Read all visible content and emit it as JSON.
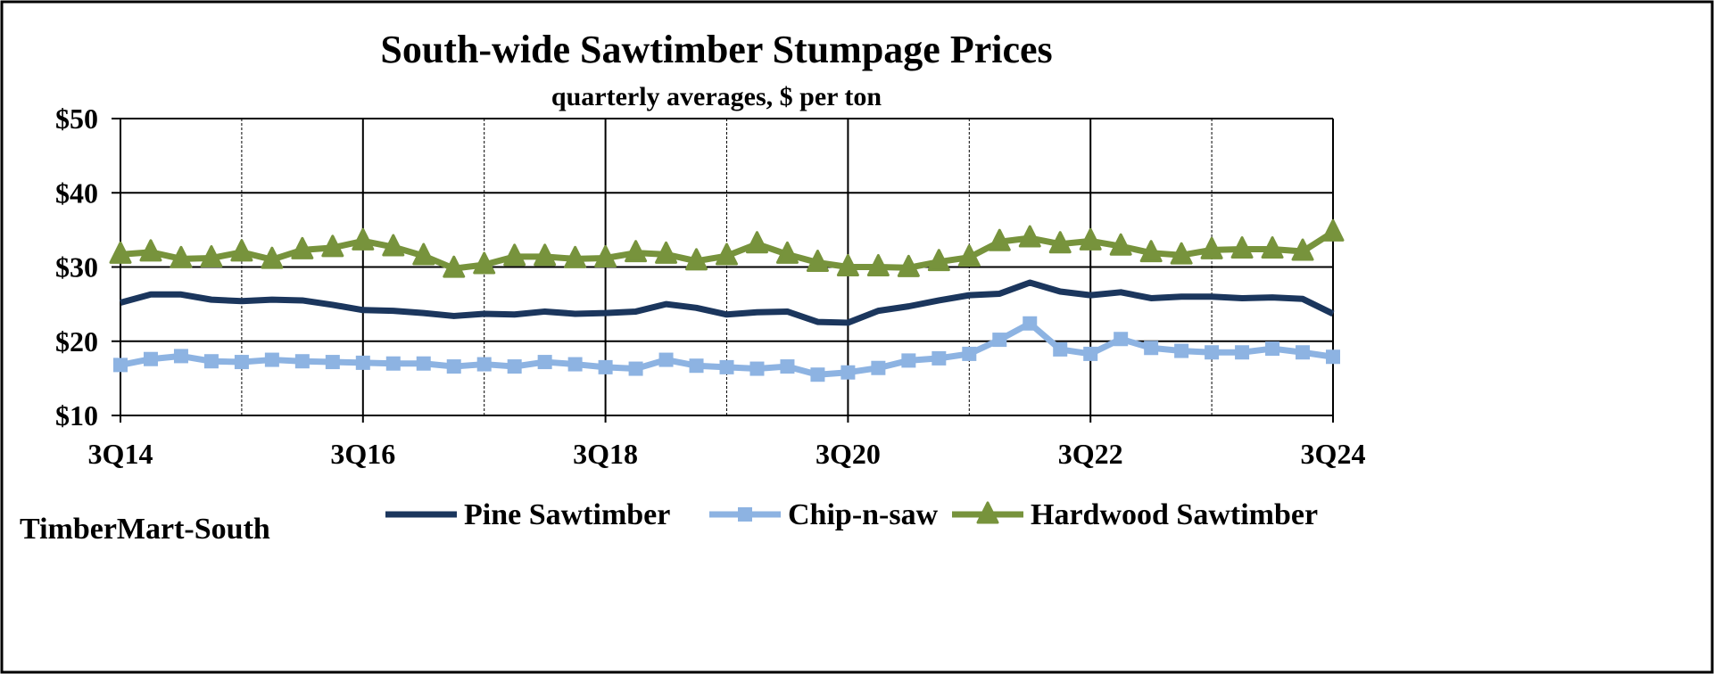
{
  "chart_data": {
    "type": "line",
    "title": "South-wide Sawtimber Stumpage Prices",
    "subtitle": "quarterly averages, $ per ton",
    "source": "TimberMart-South",
    "ylim": [
      10,
      50
    ],
    "yticks": [
      10,
      20,
      30,
      40,
      50
    ],
    "ytick_labels": [
      "$10",
      "$20",
      "$30",
      "$40",
      "$50"
    ],
    "xtick_labels": [
      "3Q14",
      "3Q16",
      "3Q18",
      "3Q20",
      "3Q22",
      "3Q24"
    ],
    "x_start": "3Q14",
    "x_end": "3Q24",
    "grid": true,
    "legend_placement": "bottom",
    "series": [
      {
        "name": "Pine Sawtimber",
        "color": "#1b365d",
        "marker": "none",
        "values": [
          25.2,
          26.3,
          26.3,
          25.6,
          25.4,
          25.6,
          25.5,
          24.9,
          24.2,
          24.1,
          23.8,
          23.4,
          23.7,
          23.6,
          24.0,
          23.7,
          23.8,
          24.0,
          25.0,
          24.5,
          23.6,
          23.9,
          24.0,
          22.6,
          22.5,
          24.1,
          24.7,
          25.5,
          26.2,
          26.4,
          27.9,
          26.7,
          26.2,
          26.6,
          25.8,
          26.0,
          26.0,
          25.8,
          25.9,
          25.7,
          23.7
        ]
      },
      {
        "name": "Chip-n-saw",
        "color": "#8db3e2",
        "marker": "square",
        "values": [
          16.8,
          17.6,
          18.0,
          17.3,
          17.2,
          17.5,
          17.3,
          17.2,
          17.1,
          17.0,
          17.0,
          16.6,
          16.9,
          16.6,
          17.2,
          16.9,
          16.5,
          16.3,
          17.5,
          16.7,
          16.5,
          16.3,
          16.6,
          15.5,
          15.8,
          16.4,
          17.4,
          17.7,
          18.3,
          20.2,
          22.4,
          18.9,
          18.3,
          20.3,
          19.1,
          18.7,
          18.5,
          18.5,
          19.0,
          18.5,
          17.9
        ]
      },
      {
        "name": "Hardwood Sawtimber",
        "color": "#77933c",
        "marker": "triangle",
        "values": [
          31.7,
          32.0,
          31.1,
          31.2,
          32.0,
          31.0,
          32.3,
          32.6,
          33.5,
          32.7,
          31.5,
          29.8,
          30.3,
          31.4,
          31.4,
          31.1,
          31.2,
          31.9,
          31.7,
          30.8,
          31.5,
          33.1,
          31.7,
          30.6,
          30.0,
          30.0,
          29.9,
          30.7,
          31.3,
          33.4,
          33.9,
          33.1,
          33.5,
          32.8,
          31.9,
          31.6,
          32.3,
          32.4,
          32.4,
          32.1,
          34.7
        ]
      }
    ]
  }
}
